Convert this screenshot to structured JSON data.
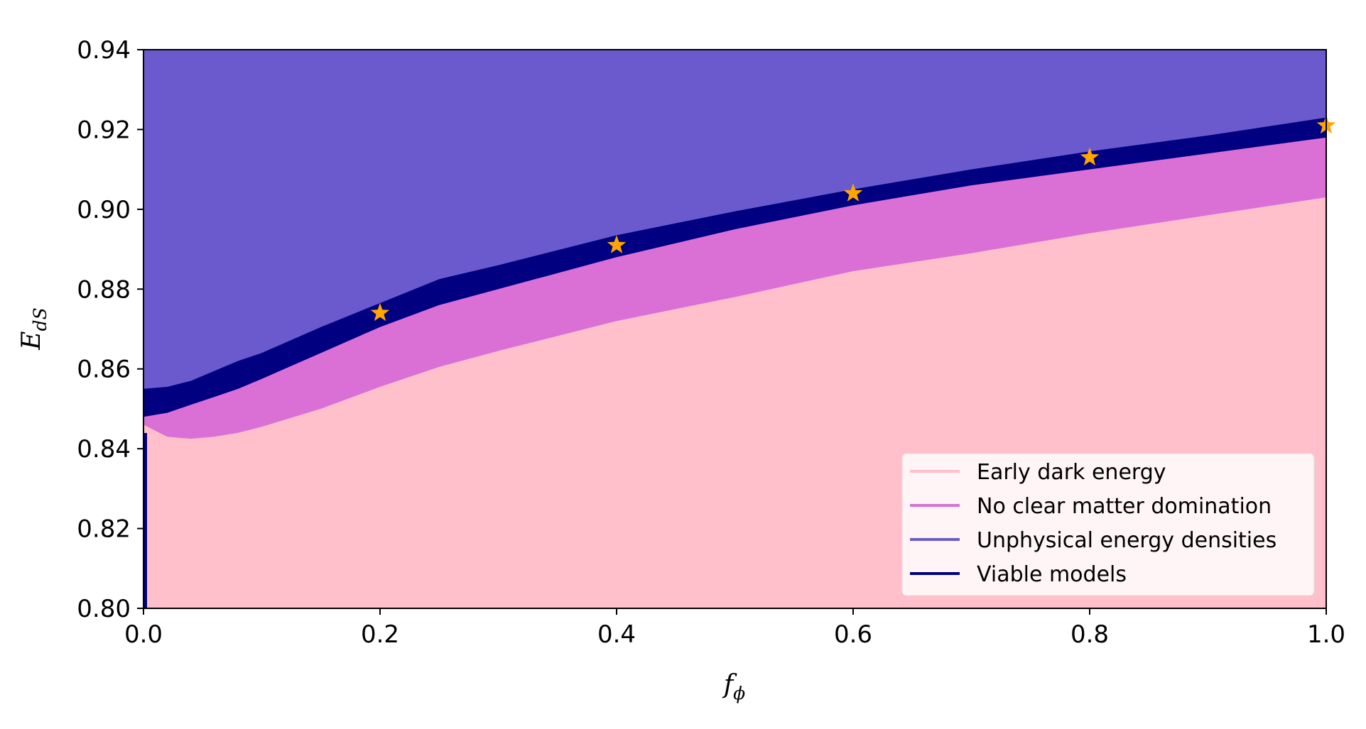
{
  "chart_data": {
    "type": "area",
    "title": "",
    "xlabel": {
      "main": "f",
      "sub": "ϕ"
    },
    "ylabel": {
      "main": "E",
      "sub": "dS"
    },
    "xlim": [
      0.0,
      1.0
    ],
    "ylim": [
      0.8,
      0.94
    ],
    "x_ticks": [
      "0.0",
      "0.2",
      "0.4",
      "0.6",
      "0.8",
      "1.0"
    ],
    "y_ticks": [
      "0.80",
      "0.82",
      "0.84",
      "0.86",
      "0.88",
      "0.90",
      "0.92",
      "0.94"
    ],
    "grid": false,
    "legend_position": "lower-right",
    "regions": [
      {
        "name": "Early dark energy",
        "color": "#ffc0cb"
      },
      {
        "name": "No clear matter domination",
        "color": "#da70d6"
      },
      {
        "name": "Unphysical energy densities",
        "color": "#6a5acd"
      },
      {
        "name": "Viable models",
        "color": "#000080"
      }
    ],
    "boundaries": {
      "x": [
        0.0,
        0.02,
        0.04,
        0.06,
        0.08,
        0.1,
        0.15,
        0.2,
        0.25,
        0.3,
        0.4,
        0.5,
        0.6,
        0.7,
        0.8,
        0.9,
        1.0
      ],
      "early_dark_energy_upper": [
        0.846,
        0.843,
        0.8425,
        0.843,
        0.844,
        0.8455,
        0.85,
        0.8555,
        0.8605,
        0.8645,
        0.872,
        0.878,
        0.8845,
        0.889,
        0.894,
        0.8985,
        0.903
      ],
      "no_clear_matter_domination_upper": [
        0.848,
        0.849,
        0.851,
        0.853,
        0.855,
        0.8575,
        0.864,
        0.8705,
        0.876,
        0.88,
        0.888,
        0.895,
        0.901,
        0.906,
        0.91,
        0.914,
        0.918
      ],
      "viable_models_upper": [
        0.855,
        0.8555,
        0.857,
        0.8595,
        0.862,
        0.864,
        0.8705,
        0.8765,
        0.8825,
        0.886,
        0.8935,
        0.8995,
        0.905,
        0.91,
        0.9145,
        0.9185,
        0.923
      ]
    },
    "markers": {
      "x": [
        0.2,
        0.4,
        0.6,
        0.8,
        1.0
      ],
      "y": [
        0.874,
        0.891,
        0.904,
        0.913,
        0.921
      ],
      "color": "#ffa500",
      "symbol": "star"
    }
  }
}
